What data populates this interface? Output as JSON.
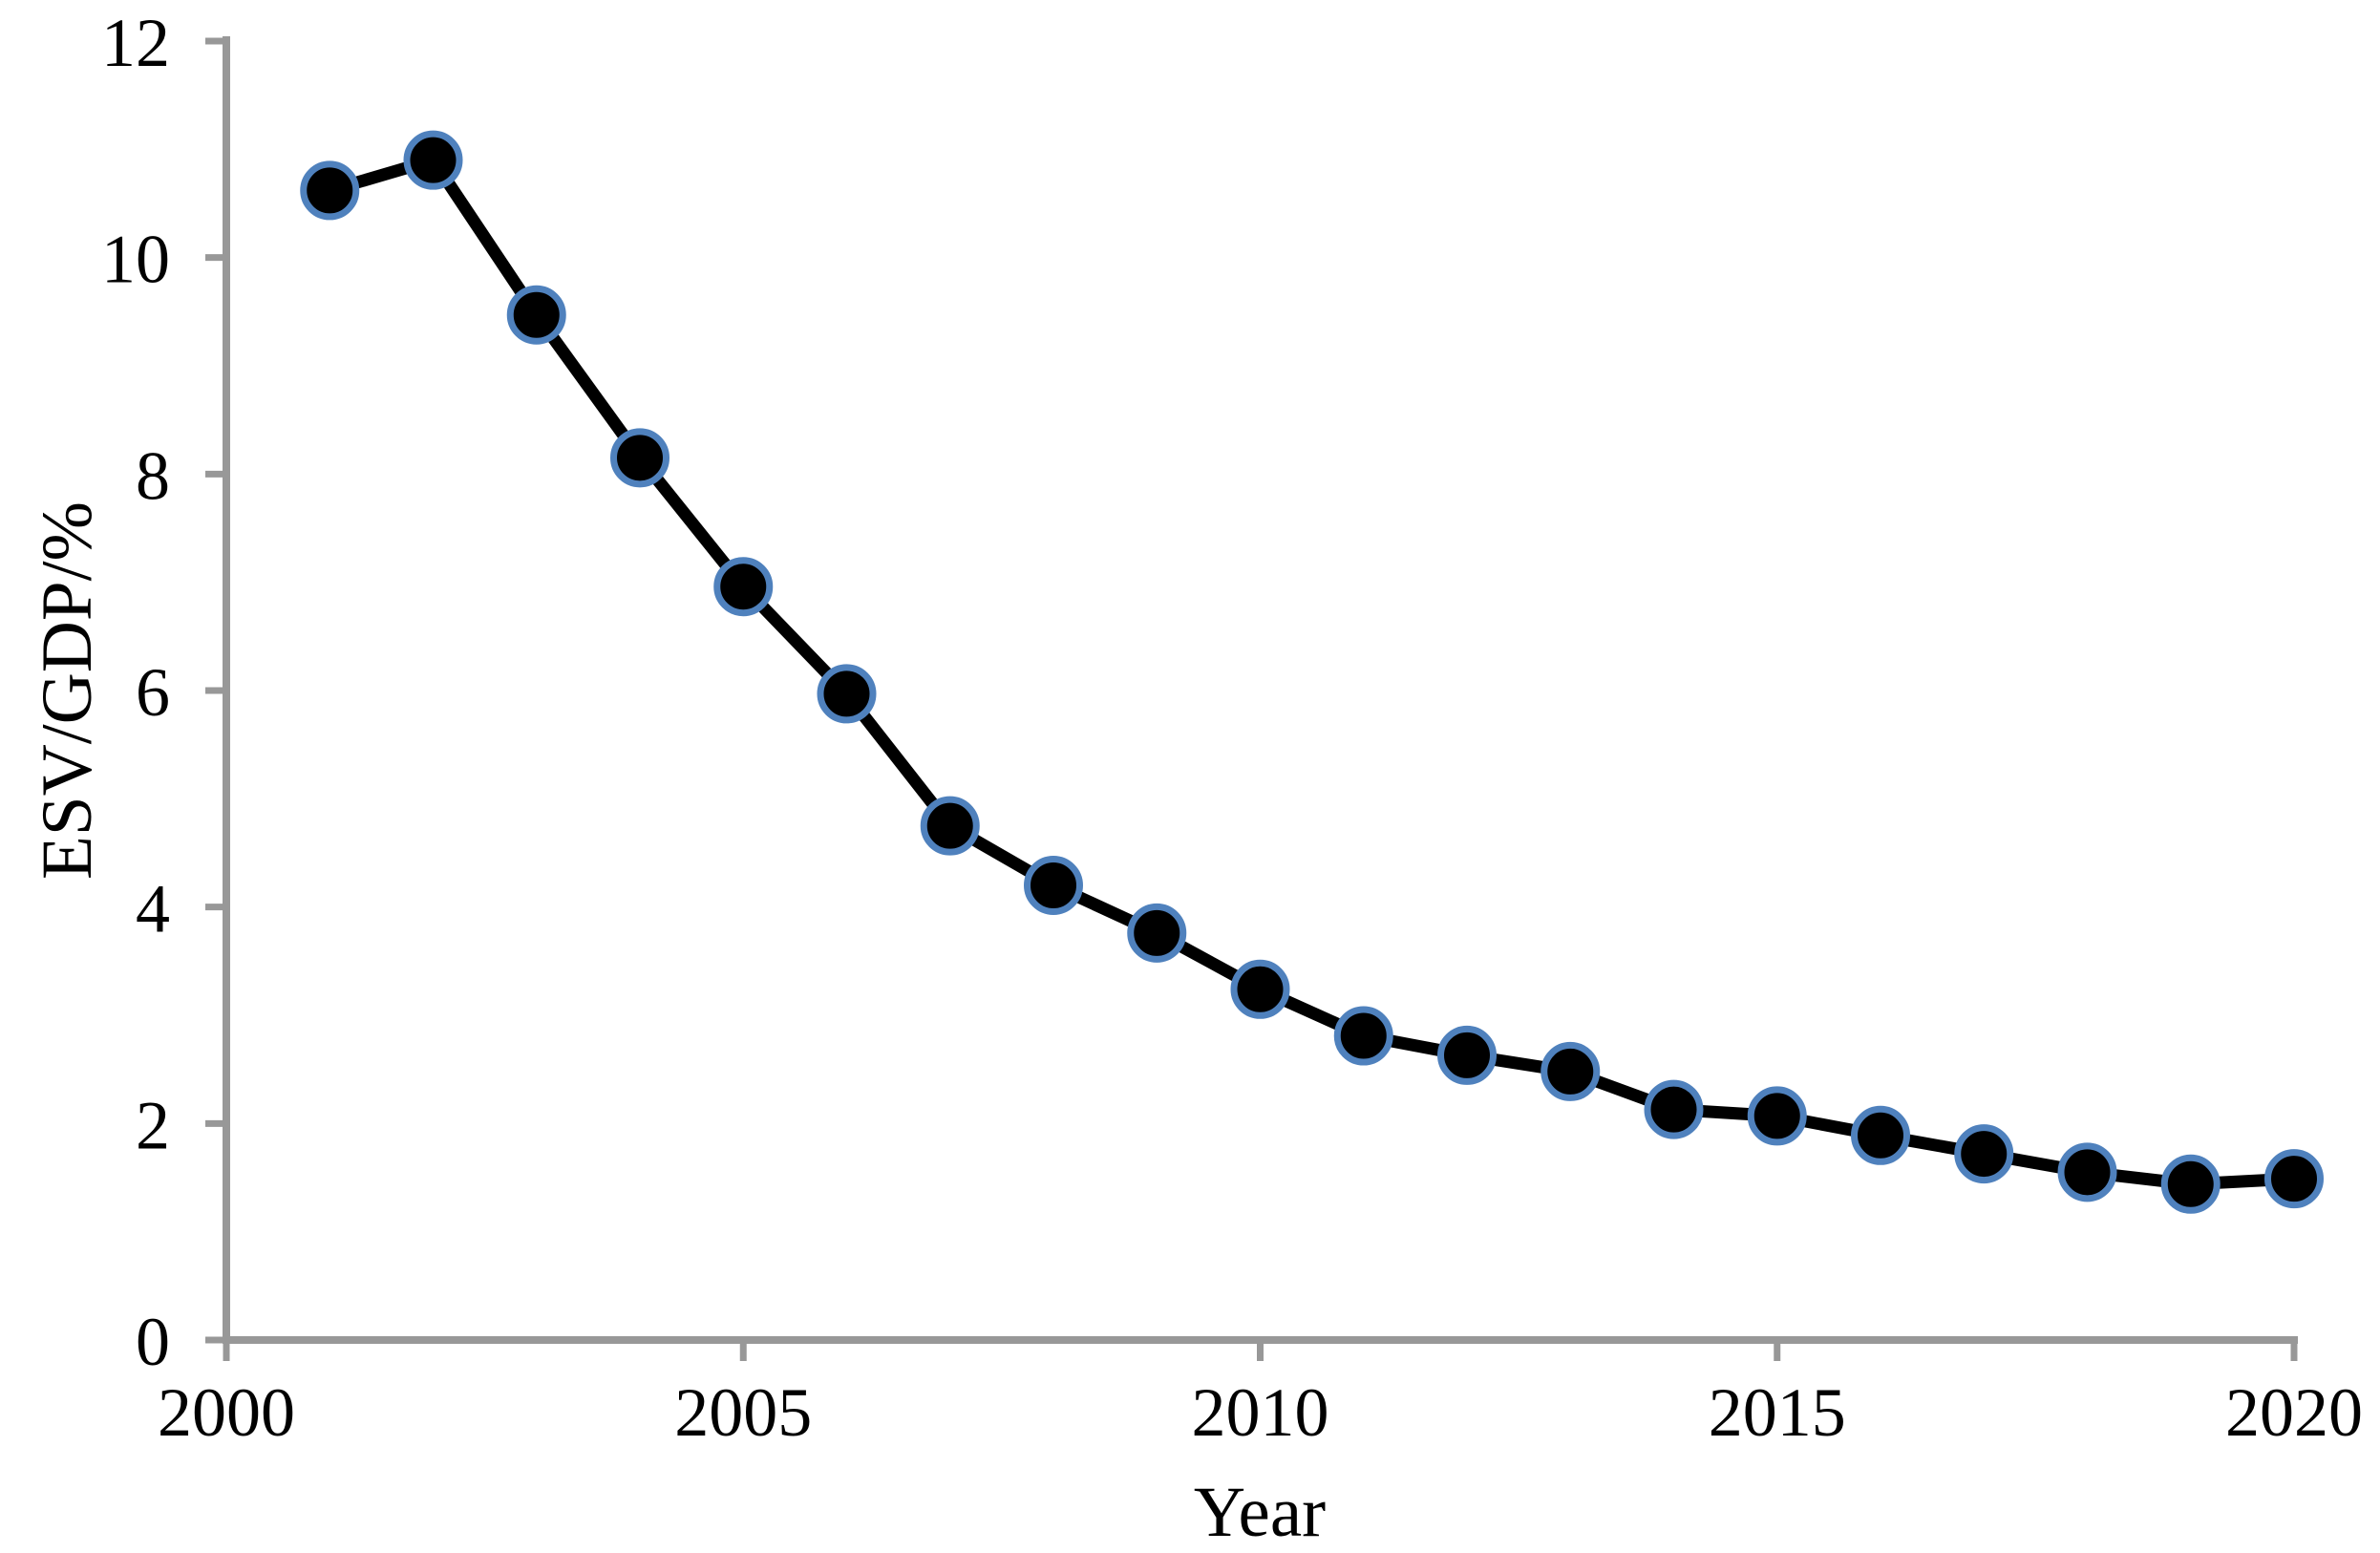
{
  "chart_data": {
    "type": "line",
    "title": "",
    "xlabel": "Year",
    "ylabel": "ESV/GDP/%",
    "x": [
      2001,
      2002,
      2003,
      2004,
      2005,
      2006,
      2007,
      2008,
      2009,
      2010,
      2011,
      2012,
      2013,
      2014,
      2015,
      2016,
      2017,
      2018,
      2019,
      2020
    ],
    "values": [
      10.62,
      10.9,
      9.47,
      8.15,
      6.96,
      5.97,
      4.75,
      4.2,
      3.76,
      3.24,
      2.81,
      2.63,
      2.48,
      2.13,
      2.07,
      1.89,
      1.72,
      1.55,
      1.44,
      1.49
    ],
    "xlim": [
      2000,
      2020
    ],
    "ylim": [
      0,
      12
    ],
    "xticks": [
      2000,
      2005,
      2010,
      2015,
      2020
    ],
    "yticks": [
      0,
      2,
      4,
      6,
      8,
      10,
      12
    ],
    "grid": false,
    "legend": "none",
    "marker": "circle",
    "colors": {
      "line": "#000000",
      "marker_fill": "#000000",
      "marker_ring": "#4F81BD",
      "axis": "#989898",
      "text": "#000000"
    }
  }
}
